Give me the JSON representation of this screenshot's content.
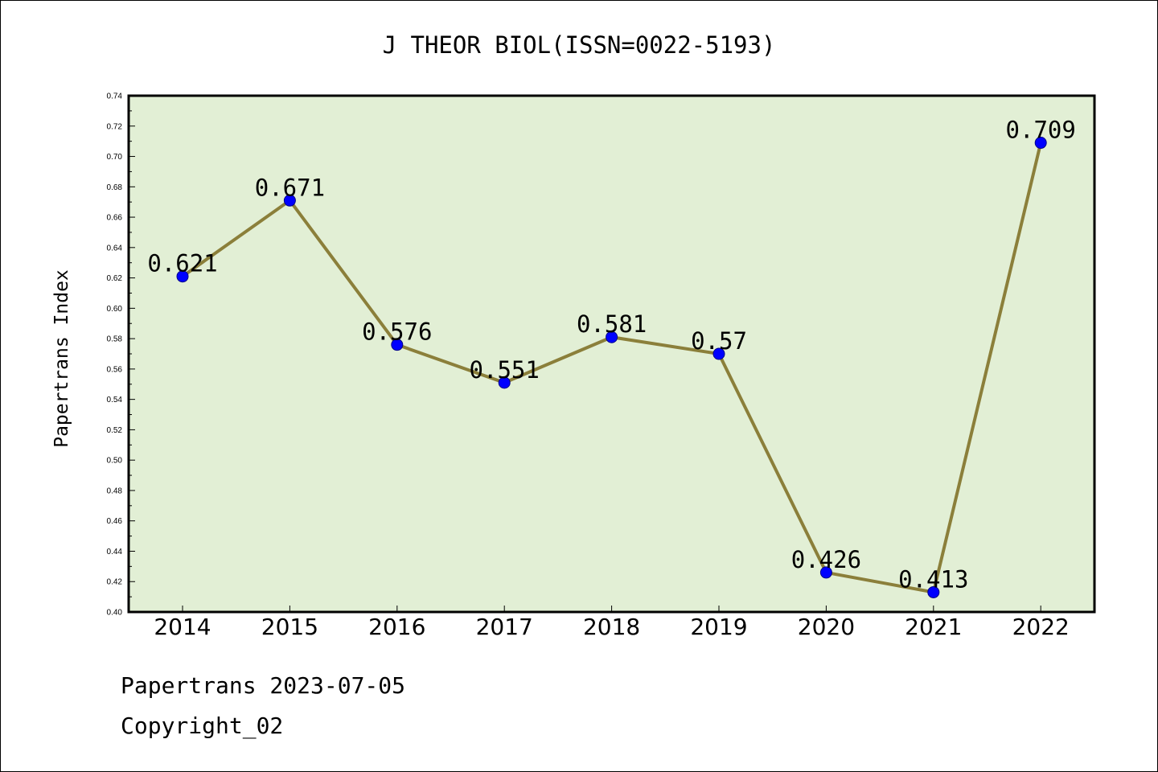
{
  "colors": {
    "plot_background": "#e2efd5",
    "line": "#8b7f3a",
    "marker": "#0000ff",
    "marker_edge": "#00008b"
  },
  "footer": {
    "line1": "Papertrans 2023-07-05",
    "line2": "Copyright_02"
  },
  "chart_data": {
    "type": "line",
    "title": "J THEOR BIOL(ISSN=0022-5193)",
    "xlabel": "",
    "ylabel": "Papertrans Index",
    "categories": [
      "2014",
      "2015",
      "2016",
      "2017",
      "2018",
      "2019",
      "2020",
      "2021",
      "2022"
    ],
    "series": [
      {
        "values": [
          0.621,
          0.671,
          0.576,
          0.551,
          0.581,
          0.57,
          0.426,
          0.413,
          0.709
        ],
        "labels": [
          "0.621",
          "0.671",
          "0.576",
          "0.551",
          "0.581",
          "0.57",
          "0.426",
          "0.413",
          "0.709"
        ]
      }
    ],
    "ylim": [
      0.4,
      0.74
    ],
    "yticks": [
      "0.40",
      "0.42",
      "0.44",
      "0.46",
      "0.48",
      "0.50",
      "0.52",
      "0.54",
      "0.56",
      "0.58",
      "0.60",
      "0.62",
      "0.64",
      "0.66",
      "0.68",
      "0.70",
      "0.72",
      "0.74"
    ],
    "grid": false,
    "legend": "none"
  }
}
